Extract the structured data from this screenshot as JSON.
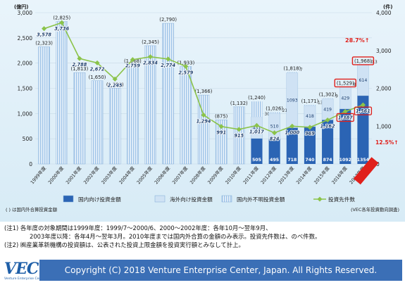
{
  "chart_data": {
    "type": "bar",
    "left_axis_unit": "(億円)",
    "right_axis_unit": "(件)",
    "left_ticks": [
      "0",
      "500",
      "1,000",
      "1,500",
      "2,000",
      "2,500",
      "3,000"
    ],
    "right_ticks": [
      "0",
      "1,000",
      "2,000",
      "3,000",
      "4,000"
    ],
    "ylim_left": [
      0,
      3000
    ],
    "ylim_right": [
      0,
      4000
    ],
    "categories": [
      "1999年度",
      "2000年度",
      "2001年度",
      "2002年度",
      "2003年度",
      "2004年度",
      "2005年度",
      "2006年度",
      "2007年度",
      "2008年度",
      "2009年度",
      "2010年度",
      "2011年度",
      "2012年度",
      "2013年度",
      "2014年度",
      "2015年度",
      "2016年度",
      "2017年度"
    ],
    "totals": [
      2323,
      2825,
      1813,
      1650,
      1503,
      1968,
      2345,
      2790,
      1933,
      1366,
      875,
      1132,
      1240,
      1026,
      1818,
      1171,
      1302,
      1529,
      1968
    ],
    "total_labels": [
      "(2,323)",
      "(2,825)",
      "(1,813)",
      "(1,650)",
      "(1,503)",
      "(1,968)",
      "(2,345)",
      "(2,790)",
      "(1,933)",
      "(1,366)",
      "(875)",
      "(1,132)",
      "(1,240)",
      "(1,026)",
      "(1,818)",
      "(1,171)",
      "(1,302)",
      "(1,529)",
      "(1,968)"
    ],
    "domestic": [
      null,
      null,
      null,
      null,
      null,
      null,
      null,
      null,
      null,
      null,
      null,
      null,
      505,
      495,
      718,
      740,
      874,
      1092,
      1354
    ],
    "overseas": [
      null,
      null,
      null,
      null,
      null,
      null,
      null,
      null,
      null,
      null,
      null,
      null,
      431,
      510,
      1093,
      418,
      419,
      429,
      614
    ],
    "unknown_small": [
      null,
      null,
      null,
      null,
      null,
      null,
      null,
      null,
      null,
      null,
      null,
      null,
      304,
      21,
      7,
      13,
      9,
      8,
      0.3
    ],
    "counts": [
      3578,
      3736,
      2788,
      2672,
      2245,
      2759,
      2834,
      2774,
      2579,
      1294,
      991,
      915,
      1017,
      824,
      1000,
      969,
      1162,
      1387,
      1561
    ],
    "series": [
      {
        "name": "国内向け投資金額",
        "color": "#2b64b4"
      },
      {
        "name": "海外向け投資金額",
        "color": "#cfe2f4"
      },
      {
        "name": "国内外不明投資金額",
        "color": "#9fc4e8"
      },
      {
        "name": "投資先件数",
        "color": "#8bc34a"
      }
    ],
    "callouts": {
      "pct_amount": "28.7%↑",
      "pct_count": "12.5%↑"
    },
    "footnote_left": "( ) は国内外合算投資金額",
    "source": "(VEC各年投資動向調査)"
  },
  "notes": {
    "note1_line1": "(注1) 各年度の対象期間は1999年度：1999/7～2000/6、2000～2002年度：各年10月～翌年9月、",
    "note1_line2": "2003年度以降：各年4月～翌年3月。2010年度までは国内外合算の金額のみ表示。投資先件数は、のべ件数。",
    "note2": "(注2) ㈱産業革新機構の投資額は、公表された投資上限金額を投資実行額とみなして計上。"
  },
  "footer": {
    "logo": "VEC",
    "logo_sub": "Venture Enterprise Center",
    "copyright": "Copyright (C) 2018 Venture Enterprise Center, Japan. All Rights Reserved."
  },
  "colors": {
    "accent_red": "#e0201b",
    "bar_blue": "#2b64b4",
    "bar_light": "#cfe2f4",
    "bar_hatch": "#9fc4e8",
    "line_green": "#8bc34a",
    "footer_blue": "#3b6fb6"
  }
}
